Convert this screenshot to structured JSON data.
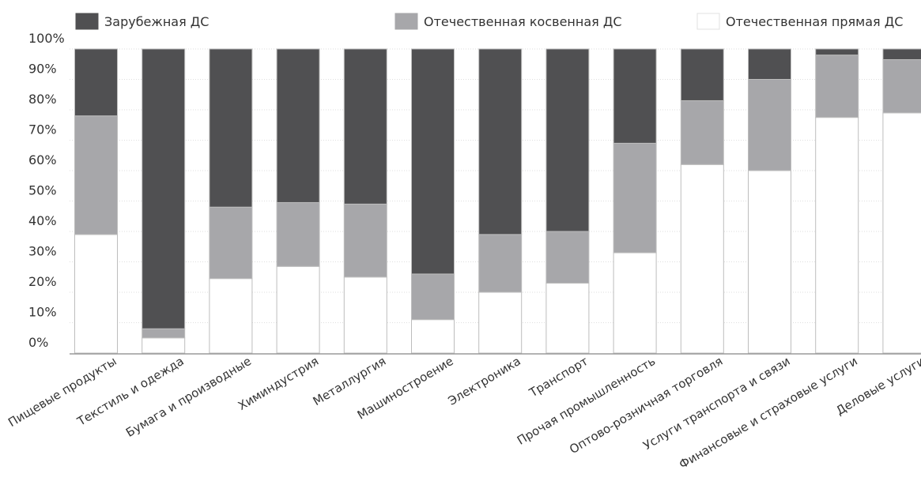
{
  "chart_data": {
    "type": "bar",
    "stacked": true,
    "percent": true,
    "title": "",
    "xlabel": "",
    "ylabel": "",
    "ylim": [
      0,
      100
    ],
    "yticks": [
      "0%",
      "10%",
      "20%",
      "30%",
      "40%",
      "50%",
      "60%",
      "70%",
      "80%",
      "90%",
      "100%"
    ],
    "grid": true,
    "legend_position": "top",
    "categories": [
      "Пищевые продукты",
      "Текстиль и одежда",
      "Бумага и производные",
      "Химиндустрия",
      "Металлургия",
      "Машиностроение",
      "Электроника",
      "Транспорт",
      "Прочая промышленность",
      "Оптово-розничная торговля",
      "Услуги транспорта и связи",
      "Финансовые и страховые услуги",
      "Деловые услуги"
    ],
    "series": [
      {
        "name": "Отечественная прямая ДС",
        "color": "#ffffff",
        "values": [
          39,
          5,
          24.5,
          28.5,
          25,
          11,
          20,
          23,
          33,
          62,
          60,
          77.5,
          79
        ]
      },
      {
        "name": "Отечественная косвенная ДС",
        "color": "#a7a7aa",
        "values": [
          39,
          3,
          23.5,
          21,
          24,
          15,
          19,
          17,
          36,
          21,
          30,
          20.5,
          17.5
        ]
      },
      {
        "name": "Зарубежная ДС",
        "color": "#505052",
        "values": [
          22,
          92,
          52,
          50.5,
          51,
          74,
          61,
          60,
          31,
          17,
          10,
          2,
          3.5
        ]
      }
    ],
    "legend_order": [
      "Зарубежная ДС",
      "Отечественная косвенная ДС",
      "Отечественная прямая ДС"
    ]
  }
}
